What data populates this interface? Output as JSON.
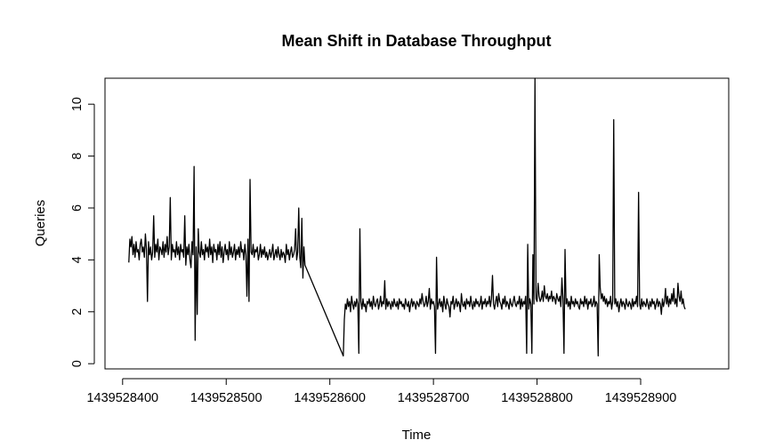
{
  "chart_data": {
    "type": "line",
    "title": "Mean Shift in Database Throughput",
    "xlabel": "Time",
    "ylabel": "Queries",
    "xlim": [
      1439528383,
      1439528985
    ],
    "ylim": [
      -0.2,
      11.0
    ],
    "xticks": [
      1439528400,
      1439528500,
      1439528600,
      1439528700,
      1439528800,
      1439528900
    ],
    "yticks": [
      0,
      2,
      4,
      6,
      8,
      10
    ],
    "xtick_labels": [
      "1439528400",
      "1439528500",
      "1439528600",
      "1439528700",
      "1439528800",
      "1439528900"
    ],
    "ytick_labels": [
      "0",
      "2",
      "4",
      "6",
      "8",
      "10"
    ],
    "grid": false,
    "legend": "none",
    "line_color": "#000000",
    "segments": [
      {
        "x_start": 1439528406,
        "step": 1,
        "values": [
          3.9,
          4.8,
          4.5,
          4.9,
          4.2,
          4.6,
          4.1,
          4.7,
          4.3,
          4.4,
          4.0,
          4.6,
          4.8,
          4.3,
          4.5,
          4.1,
          5.0,
          4.4,
          2.4,
          4.7,
          4.2,
          4.5,
          4.0,
          4.3,
          5.7,
          4.1,
          4.6,
          4.3,
          4.8,
          4.0,
          4.5,
          4.4,
          4.2,
          4.7,
          4.1,
          4.6,
          4.3,
          4.9,
          4.2,
          4.5,
          6.4,
          4.0,
          4.6,
          4.3,
          4.4,
          4.1,
          4.7,
          4.2,
          4.5,
          4.0,
          4.6,
          4.3,
          4.4,
          4.1,
          5.7,
          3.8,
          4.5,
          4.2,
          4.6,
          4.0,
          3.7,
          4.7,
          4.2,
          7.6,
          0.9,
          4.5,
          1.9,
          5.2,
          4.3,
          4.1,
          4.7,
          4.2,
          4.4,
          4.0,
          4.6,
          4.3,
          4.5,
          4.1,
          4.8,
          4.2,
          4.5,
          3.9,
          4.6,
          4.3,
          4.4,
          4.0,
          4.6,
          4.2,
          4.7,
          4.1,
          4.5,
          3.9,
          4.3,
          4.6,
          4.2,
          4.4,
          4.0,
          4.7,
          4.2,
          4.5,
          4.1,
          4.3,
          4.6,
          4.0,
          4.4,
          4.2,
          4.5,
          4.1,
          4.7,
          4.3,
          4.4,
          4.0,
          4.6,
          4.2,
          2.6,
          4.8,
          2.4,
          7.1,
          4.3,
          4.2,
          4.6,
          4.1,
          4.4,
          4.3,
          4.5,
          4.0,
          4.2,
          4.6,
          4.1,
          4.4,
          4.2,
          4.5,
          4.1,
          4.3,
          4.0,
          4.2,
          4.4,
          4.1,
          4.3,
          4.6,
          4.0,
          4.2,
          4.4,
          4.1,
          4.5,
          4.2,
          4.0,
          4.4,
          4.1,
          4.3,
          4.2,
          3.9,
          4.6,
          4.2,
          4.4,
          4.0,
          4.3,
          4.5,
          4.1,
          4.2,
          4.4,
          5.2,
          4.0,
          4.3,
          6.0,
          4.1,
          3.7,
          5.6,
          3.3,
          4.5,
          3.8
        ]
      },
      {
        "x_start": 1439528613,
        "step": 1,
        "values": [
          0.3,
          1.7,
          2.3,
          2.1,
          2.5,
          2.2,
          2.4,
          2.0,
          2.6,
          2.3,
          2.1,
          2.4,
          2.2,
          2.5,
          2.3,
          0.4,
          5.2,
          2.4,
          2.1,
          2.5,
          2.2,
          2.3,
          2.0,
          2.4,
          2.3,
          2.5,
          2.2,
          2.4,
          2.1,
          2.6,
          2.3,
          2.2,
          2.4,
          2.5,
          2.1,
          2.3,
          2.6,
          2.2,
          2.4,
          2.3,
          3.2,
          2.1,
          2.5,
          2.2,
          2.4,
          2.3,
          2.1,
          2.4,
          2.2,
          2.5,
          2.3,
          2.2,
          2.4,
          2.1,
          2.5,
          2.3,
          2.4,
          2.2,
          2.3,
          2.1,
          2.5,
          2.3,
          2.2,
          2.4,
          2.0,
          2.3,
          2.5,
          2.2,
          2.4,
          2.3,
          2.1,
          2.4,
          2.3,
          2.2,
          2.5,
          2.3,
          2.7,
          2.4,
          2.2,
          2.3,
          2.6,
          2.2,
          2.4,
          2.9,
          2.1,
          2.5,
          2.3,
          2.4,
          2.2,
          0.4,
          4.1,
          2.1,
          2.3,
          2.5,
          2.2,
          2.4,
          2.0,
          2.6,
          2.3,
          2.1,
          2.5,
          2.3,
          2.2,
          1.8,
          2.4,
          2.3,
          2.6,
          2.1,
          2.3,
          2.5,
          2.2,
          2.4,
          2.3,
          2.0,
          2.7,
          2.3,
          2.2,
          2.4,
          2.1,
          2.5,
          2.3,
          2.4,
          2.2,
          2.6,
          2.3,
          2.1,
          2.4,
          2.2,
          2.5,
          2.3,
          2.4,
          2.2,
          2.3,
          2.6,
          2.1,
          2.4,
          2.3,
          2.5,
          2.2,
          2.4,
          2.3,
          2.6,
          2.2,
          2.5,
          3.4,
          2.3,
          2.1,
          2.4,
          2.6,
          2.2,
          2.7,
          2.4,
          2.3,
          2.1,
          2.5,
          2.3,
          2.6,
          2.2,
          2.4,
          2.3,
          2.1,
          2.5,
          2.3,
          2.2,
          2.4,
          2.6,
          2.3,
          2.2,
          2.4,
          2.3,
          2.6,
          2.1,
          2.5,
          2.2,
          2.4,
          2.3,
          2.6,
          0.4,
          4.6,
          2.1,
          2.5,
          2.3,
          0.4,
          4.2,
          2.3,
          11.0,
          2.5,
          2.4,
          3.1,
          2.6,
          2.4,
          2.5,
          2.8,
          2.4,
          3.0,
          2.6,
          2.5,
          2.7,
          2.4,
          2.6,
          2.5,
          2.8,
          2.4,
          2.6,
          2.5,
          2.3,
          2.7,
          2.5,
          2.4,
          2.6,
          2.2,
          3.3,
          2.5,
          0.4,
          4.4,
          2.3,
          2.5,
          2.2,
          2.4,
          2.1,
          2.6,
          2.3,
          2.4,
          2.2,
          2.5,
          2.3,
          2.4,
          2.2,
          2.1,
          2.5,
          2.3,
          2.4,
          2.2,
          2.6,
          2.3,
          2.5,
          2.1,
          2.4,
          2.3,
          2.5,
          2.2,
          2.3,
          2.6,
          2.2,
          2.4,
          2.3,
          0.3,
          4.2,
          2.9,
          2.5,
          2.7,
          2.4,
          2.6,
          2.3,
          2.5,
          2.2,
          2.4,
          2.3,
          2.6,
          2.1,
          2.4,
          9.4,
          2.3,
          2.5,
          2.2,
          2.4,
          2.0,
          2.3,
          2.5,
          2.2,
          2.4,
          2.3,
          2.1,
          2.5,
          2.3,
          2.2,
          2.4,
          2.3,
          2.1,
          2.5,
          2.2,
          2.4,
          2.3,
          2.6,
          2.2,
          6.6,
          2.3,
          2.1,
          2.5,
          2.2,
          2.4,
          2.3,
          2.2,
          2.5,
          2.3,
          2.1,
          2.4,
          2.2,
          2.5,
          2.3,
          2.4,
          2.1,
          2.3,
          2.5,
          2.2,
          2.4,
          2.3,
          1.9,
          2.5,
          2.2,
          2.4,
          2.9,
          2.3,
          2.6,
          2.2,
          2.5,
          2.3,
          2.7,
          2.4,
          2.9,
          2.3,
          2.5,
          2.2,
          3.1,
          2.6,
          2.4,
          2.8,
          2.3,
          2.5,
          2.2,
          2.1
        ]
      }
    ]
  }
}
